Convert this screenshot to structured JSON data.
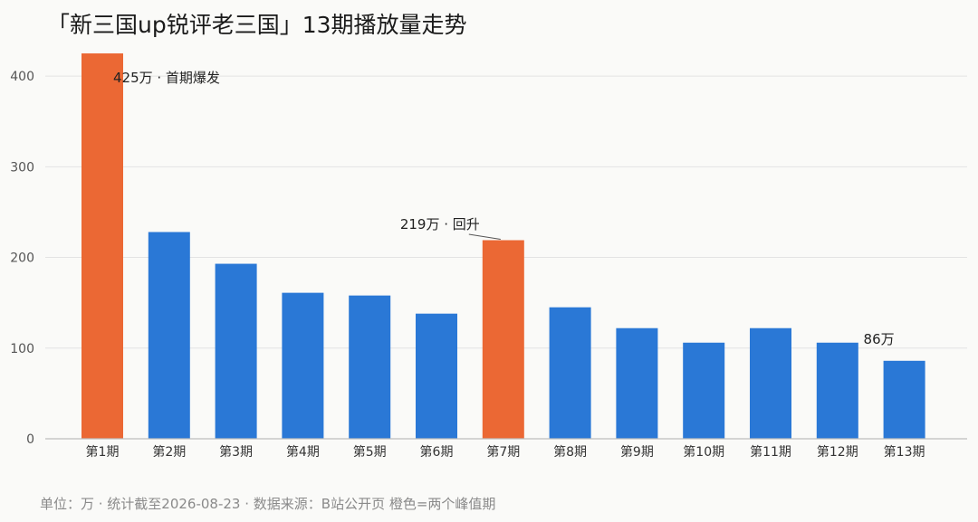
{
  "chart_data": {
    "type": "bar",
    "title": "「新三国up锐评老三国」13期播放量走势",
    "categories": [
      "第1期",
      "第2期",
      "第3期",
      "第4期",
      "第5期",
      "第6期",
      "第7期",
      "第8期",
      "第9期",
      "第10期",
      "第11期",
      "第12期",
      "第13期"
    ],
    "values": [
      425,
      228,
      193,
      161,
      158,
      138,
      219,
      145,
      122,
      106,
      122,
      106,
      86
    ],
    "highlight": [
      true,
      false,
      false,
      false,
      false,
      false,
      true,
      false,
      false,
      false,
      false,
      false,
      false
    ],
    "colors": {
      "normal": "#2a78d6",
      "highlight": "#eb6834",
      "grid": "#e3e3e3",
      "axis": "#bdbdbd"
    },
    "ylim": [
      0,
      440
    ],
    "yticks": [
      0,
      100,
      200,
      300,
      400
    ],
    "xlabel": "",
    "ylabel": "",
    "grid": true,
    "annotations": [
      {
        "index": 0,
        "text": "425万 · 首期爆发"
      },
      {
        "index": 6,
        "text": "219万 · 回升"
      },
      {
        "index": 12,
        "text": "86万"
      }
    ]
  },
  "footnote": "单位：万 · 统计截至2026-08-23 · 数据来源：B站公开页  橙色=两个峰值期"
}
